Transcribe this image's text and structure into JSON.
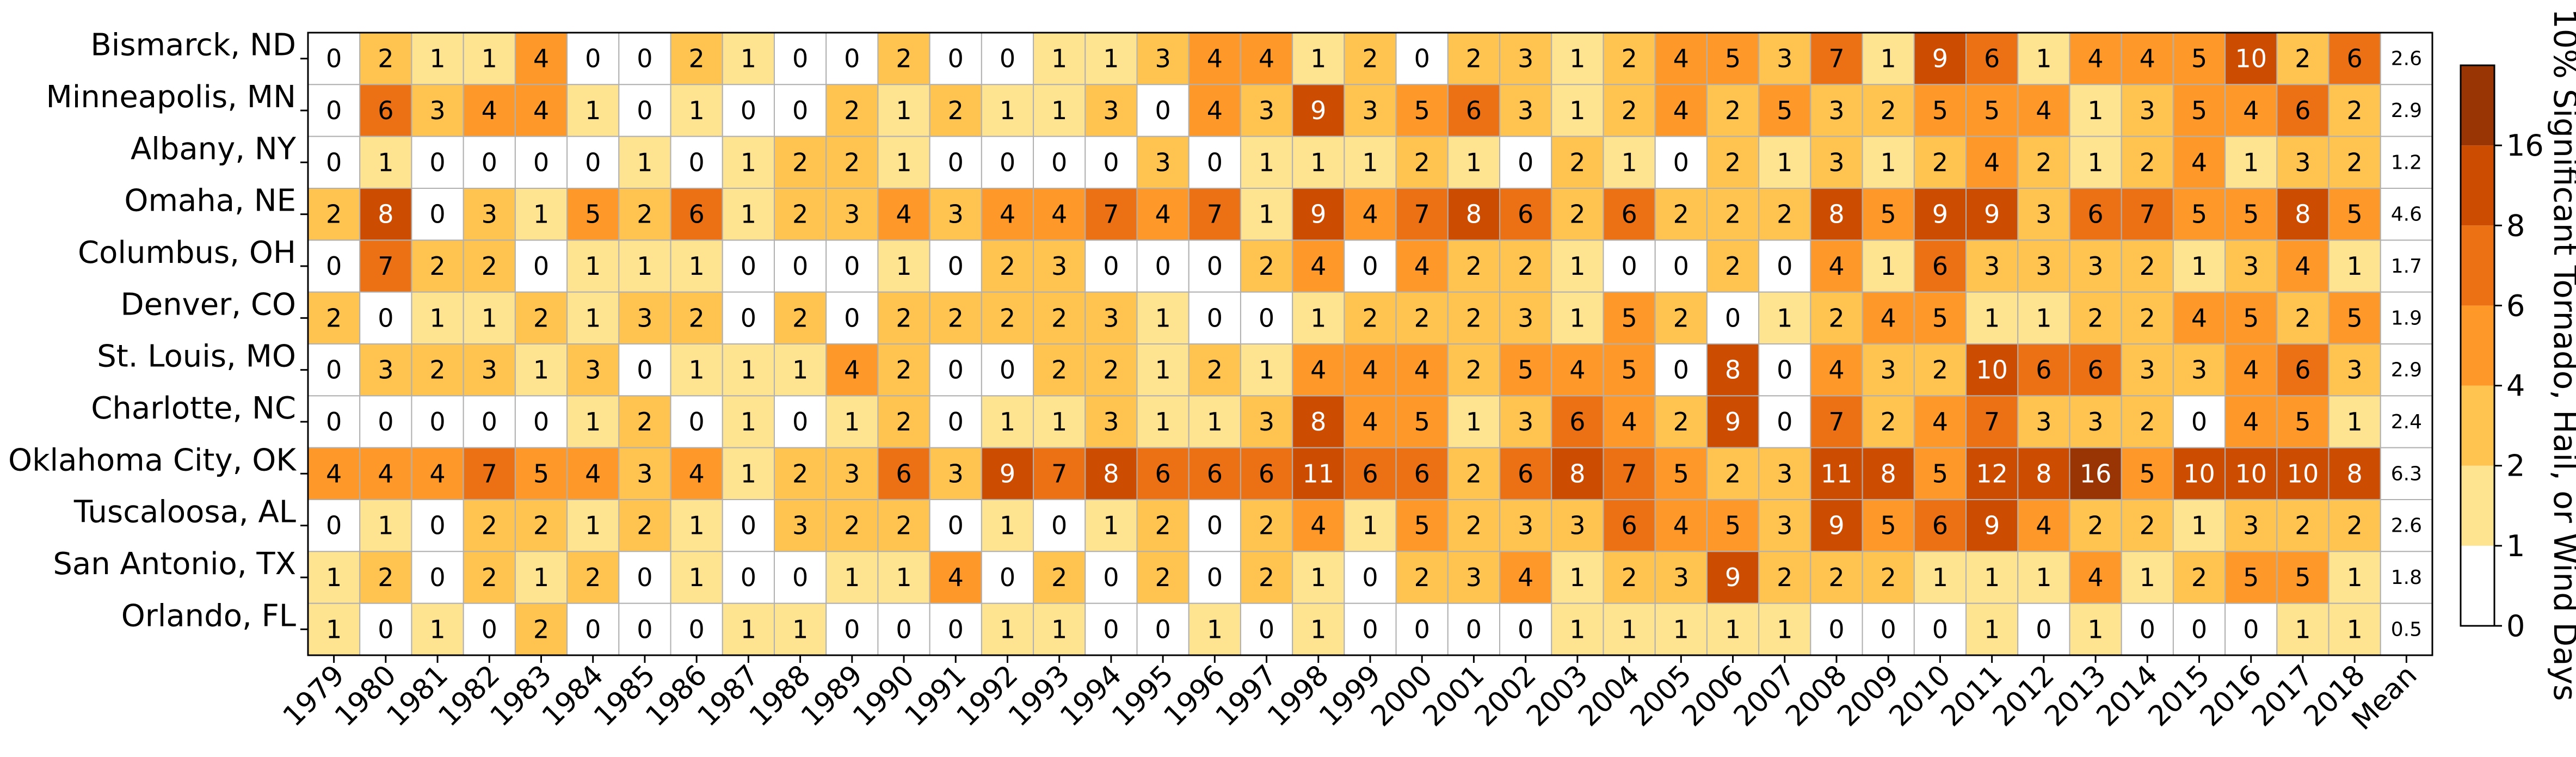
{
  "chart_data": {
    "type": "heatmap",
    "title": "",
    "xlabel": "",
    "ylabel": "",
    "colorbar_label": "10% Significant Tornado, Hail, or Wind Days",
    "colorbar_ticks": [
      "0",
      "1",
      "2",
      "4",
      "6",
      "8",
      "16"
    ],
    "colorbar_bounds": [
      0,
      1,
      2,
      4,
      6,
      8,
      16
    ],
    "colorbar_colors": [
      "#ffffff",
      "#fee391",
      "#fec44f",
      "#fe9929",
      "#ec7014",
      "#cc4c02",
      "#993404"
    ],
    "rows": [
      "Bismarck, ND",
      "Minneapolis, MN",
      "Albany, NY",
      "Omaha, NE",
      "Columbus, OH",
      "Denver, CO",
      "St. Louis, MO",
      "Charlotte, NC",
      "Oklahoma City, OK",
      "Tuscaloosa, AL",
      "San Antonio, TX",
      "Orlando, FL"
    ],
    "columns": [
      "1979",
      "1980",
      "1981",
      "1982",
      "1983",
      "1984",
      "1985",
      "1986",
      "1987",
      "1988",
      "1989",
      "1990",
      "1991",
      "1992",
      "1993",
      "1994",
      "1995",
      "1996",
      "1997",
      "1998",
      "1999",
      "2000",
      "2001",
      "2002",
      "2003",
      "2004",
      "2005",
      "2006",
      "2007",
      "2008",
      "2009",
      "2010",
      "2011",
      "2012",
      "2013",
      "2014",
      "2015",
      "2016",
      "2017",
      "2018",
      "Mean"
    ],
    "values": [
      [
        0,
        2,
        1,
        1,
        4,
        0,
        0,
        2,
        1,
        0,
        0,
        2,
        0,
        0,
        1,
        1,
        3,
        4,
        4,
        1,
        2,
        0,
        2,
        3,
        1,
        2,
        4,
        5,
        3,
        7,
        1,
        9,
        6,
        1,
        4,
        4,
        5,
        10,
        2,
        6
      ],
      [
        0,
        6,
        3,
        4,
        4,
        1,
        0,
        1,
        0,
        0,
        2,
        1,
        2,
        1,
        1,
        3,
        0,
        4,
        3,
        9,
        3,
        5,
        6,
        3,
        1,
        2,
        4,
        2,
        5,
        3,
        2,
        5,
        5,
        4,
        1,
        3,
        5,
        4,
        6,
        2
      ],
      [
        0,
        1,
        0,
        0,
        0,
        0,
        1,
        0,
        1,
        2,
        2,
        1,
        0,
        0,
        0,
        0,
        3,
        0,
        1,
        1,
        1,
        2,
        1,
        0,
        2,
        1,
        0,
        2,
        1,
        3,
        1,
        2,
        4,
        2,
        1,
        2,
        4,
        1,
        3,
        2
      ],
      [
        2,
        8,
        0,
        3,
        1,
        5,
        2,
        6,
        1,
        2,
        3,
        4,
        3,
        4,
        4,
        7,
        4,
        7,
        1,
        9,
        4,
        7,
        8,
        6,
        2,
        6,
        2,
        2,
        2,
        8,
        5,
        9,
        9,
        3,
        6,
        7,
        5,
        5,
        8,
        5
      ],
      [
        0,
        7,
        2,
        2,
        0,
        1,
        1,
        1,
        0,
        0,
        0,
        1,
        0,
        2,
        3,
        0,
        0,
        0,
        2,
        4,
        0,
        4,
        2,
        2,
        1,
        0,
        0,
        2,
        0,
        4,
        1,
        6,
        3,
        3,
        3,
        2,
        1,
        3,
        4,
        1
      ],
      [
        2,
        0,
        1,
        1,
        2,
        1,
        3,
        2,
        0,
        2,
        0,
        2,
        2,
        2,
        2,
        3,
        1,
        0,
        0,
        1,
        2,
        2,
        2,
        3,
        1,
        5,
        2,
        0,
        1,
        2,
        4,
        5,
        1,
        1,
        2,
        2,
        4,
        5,
        2,
        5
      ],
      [
        0,
        3,
        2,
        3,
        1,
        3,
        0,
        1,
        1,
        1,
        4,
        2,
        0,
        0,
        2,
        2,
        1,
        2,
        1,
        4,
        4,
        4,
        2,
        5,
        4,
        5,
        0,
        8,
        0,
        4,
        3,
        2,
        10,
        6,
        6,
        3,
        3,
        4,
        6,
        3
      ],
      [
        0,
        0,
        0,
        0,
        0,
        1,
        2,
        0,
        1,
        0,
        1,
        2,
        0,
        1,
        1,
        3,
        1,
        1,
        3,
        8,
        4,
        5,
        1,
        3,
        6,
        4,
        2,
        9,
        0,
        7,
        2,
        4,
        7,
        3,
        3,
        2,
        0,
        4,
        5,
        1
      ],
      [
        4,
        4,
        4,
        7,
        5,
        4,
        3,
        4,
        1,
        2,
        3,
        6,
        3,
        9,
        7,
        8,
        6,
        6,
        6,
        11,
        6,
        6,
        2,
        6,
        8,
        7,
        5,
        2,
        3,
        11,
        8,
        5,
        12,
        8,
        16,
        5,
        10,
        10,
        10,
        8
      ],
      [
        0,
        1,
        0,
        2,
        2,
        1,
        2,
        1,
        0,
        3,
        2,
        2,
        0,
        1,
        0,
        1,
        2,
        0,
        2,
        4,
        1,
        5,
        2,
        3,
        3,
        6,
        4,
        5,
        3,
        9,
        5,
        6,
        9,
        4,
        2,
        2,
        1,
        3,
        2,
        2
      ],
      [
        1,
        2,
        0,
        2,
        1,
        2,
        0,
        1,
        0,
        0,
        1,
        1,
        4,
        0,
        2,
        0,
        2,
        0,
        2,
        1,
        0,
        2,
        3,
        4,
        1,
        2,
        3,
        9,
        2,
        2,
        2,
        1,
        1,
        1,
        4,
        1,
        2,
        5,
        5,
        1
      ],
      [
        1,
        0,
        1,
        0,
        2,
        0,
        0,
        0,
        1,
        1,
        0,
        0,
        0,
        1,
        1,
        0,
        0,
        1,
        0,
        1,
        0,
        0,
        0,
        0,
        1,
        1,
        1,
        1,
        1,
        0,
        0,
        0,
        1,
        0,
        1,
        0,
        0,
        0,
        1,
        1
      ]
    ],
    "row_labels_display": [
      [
        "0",
        "2",
        "1",
        "1",
        "4",
        "0",
        "0",
        "2",
        "1",
        "0",
        "0",
        "2",
        "0",
        "0",
        "1",
        "1",
        "3",
        "4",
        "4",
        "1",
        "2",
        "0",
        "2",
        "3",
        "1",
        "2",
        "4",
        "5",
        "3",
        "7",
        "1",
        "9",
        "6",
        "1",
        "4",
        "4",
        "5",
        "10",
        "2",
        "6",
        "2.6"
      ],
      [
        "0",
        "6",
        "3",
        "4",
        "4",
        "1",
        "0",
        "1",
        "0",
        "0",
        "2",
        "1",
        "2",
        "1",
        "1",
        "3",
        "0",
        "4",
        "3",
        "9",
        "3",
        "5",
        "6",
        "3",
        "1",
        "2",
        "4",
        "2",
        "5",
        "3",
        "2",
        "5",
        "5",
        "4",
        "1",
        "3",
        "5",
        "4",
        "6",
        "2",
        "2.9"
      ],
      [
        "0",
        "1",
        "0",
        "0",
        "0",
        "0",
        "1",
        "0",
        "1",
        "2",
        "2",
        "1",
        "0",
        "0",
        "0",
        "0",
        "3",
        "0",
        "1",
        "1",
        "1",
        "2",
        "1",
        "0",
        "2",
        "1",
        "0",
        "2",
        "1",
        "3",
        "1",
        "2",
        "4",
        "2",
        "1",
        "2",
        "4",
        "1",
        "3",
        "2",
        "1.2"
      ],
      [
        "2",
        "8",
        "0",
        "3",
        "1",
        "5",
        "2",
        "6",
        "1",
        "2",
        "3",
        "4",
        "3",
        "4",
        "4",
        "7",
        "4",
        "7",
        "1",
        "9",
        "4",
        "7",
        "8",
        "6",
        "2",
        "6",
        "2",
        "2",
        "2",
        "8",
        "5",
        "9",
        "9",
        "3",
        "6",
        "7",
        "5",
        "5",
        "8",
        "5",
        "4.6"
      ],
      [
        "0",
        "7",
        "2",
        "2",
        "0",
        "1",
        "1",
        "1",
        "0",
        "0",
        "0",
        "1",
        "0",
        "2",
        "3",
        "0",
        "0",
        "0",
        "2",
        "4",
        "0",
        "4",
        "2",
        "2",
        "1",
        "0",
        "0",
        "2",
        "0",
        "4",
        "1",
        "6",
        "3",
        "3",
        "3",
        "2",
        "1",
        "3",
        "4",
        "1",
        "1.7"
      ],
      [
        "2",
        "0",
        "1",
        "1",
        "2",
        "1",
        "3",
        "2",
        "0",
        "2",
        "0",
        "2",
        "2",
        "2",
        "2",
        "3",
        "1",
        "0",
        "0",
        "1",
        "2",
        "2",
        "2",
        "3",
        "1",
        "5",
        "2",
        "0",
        "1",
        "2",
        "4",
        "5",
        "1",
        "1",
        "2",
        "2",
        "4",
        "5",
        "2",
        "5",
        "1.9"
      ],
      [
        "0",
        "3",
        "2",
        "3",
        "1",
        "3",
        "0",
        "1",
        "1",
        "1",
        "4",
        "2",
        "0",
        "0",
        "2",
        "2",
        "1",
        "2",
        "1",
        "4",
        "4",
        "4",
        "2",
        "5",
        "4",
        "5",
        "0",
        "8",
        "0",
        "4",
        "3",
        "2",
        "10",
        "6",
        "6",
        "3",
        "3",
        "4",
        "6",
        "3",
        "2.9"
      ],
      [
        "0",
        "0",
        "0",
        "0",
        "0",
        "1",
        "2",
        "0",
        "1",
        "0",
        "1",
        "2",
        "0",
        "1",
        "1",
        "3",
        "1",
        "1",
        "3",
        "8",
        "4",
        "5",
        "1",
        "3",
        "6",
        "4",
        "2",
        "9",
        "0",
        "7",
        "2",
        "4",
        "7",
        "3",
        "3",
        "2",
        "0",
        "4",
        "5",
        "1",
        "2.4"
      ],
      [
        "4",
        "4",
        "4",
        "7",
        "5",
        "4",
        "3",
        "4",
        "1",
        "2",
        "3",
        "6",
        "3",
        "9",
        "7",
        "8",
        "6",
        "6",
        "6",
        "11",
        "6",
        "6",
        "2",
        "6",
        "8",
        "7",
        "5",
        "2",
        "3",
        "11",
        "8",
        "5",
        "12",
        "8",
        "16",
        "5",
        "10",
        "10",
        "10",
        "8",
        "6.3"
      ],
      [
        "0",
        "1",
        "0",
        "2",
        "2",
        "1",
        "2",
        "1",
        "0",
        "3",
        "2",
        "2",
        "0",
        "1",
        "0",
        "1",
        "2",
        "0",
        "2",
        "4",
        "1",
        "5",
        "2",
        "3",
        "3",
        "6",
        "4",
        "5",
        "3",
        "9",
        "5",
        "6",
        "9",
        "4",
        "2",
        "2",
        "1",
        "3",
        "2",
        "2",
        "2.6"
      ],
      [
        "1",
        "2",
        "0",
        "2",
        "1",
        "2",
        "0",
        "1",
        "0",
        "0",
        "1",
        "1",
        "4",
        "0",
        "2",
        "0",
        "2",
        "0",
        "2",
        "1",
        "0",
        "2",
        "3",
        "4",
        "1",
        "2",
        "3",
        "9",
        "2",
        "2",
        "2",
        "1",
        "1",
        "1",
        "4",
        "1",
        "2",
        "5",
        "5",
        "1",
        "1.8"
      ],
      [
        "1",
        "0",
        "1",
        "0",
        "2",
        "0",
        "0",
        "0",
        "1",
        "1",
        "0",
        "0",
        "0",
        "1",
        "1",
        "0",
        "0",
        "1",
        "0",
        "1",
        "0",
        "0",
        "0",
        "0",
        "1",
        "1",
        "1",
        "1",
        "1",
        "0",
        "0",
        "0",
        "1",
        "0",
        "1",
        "0",
        "0",
        "0",
        "1",
        "1",
        "0.5"
      ]
    ],
    "means": [
      2.6,
      2.9,
      1.2,
      4.6,
      1.7,
      1.9,
      2.9,
      2.4,
      6.3,
      2.6,
      1.8,
      0.5
    ],
    "mean_cell_color": "#ffffff",
    "grid_color": "#b0b0b0"
  }
}
